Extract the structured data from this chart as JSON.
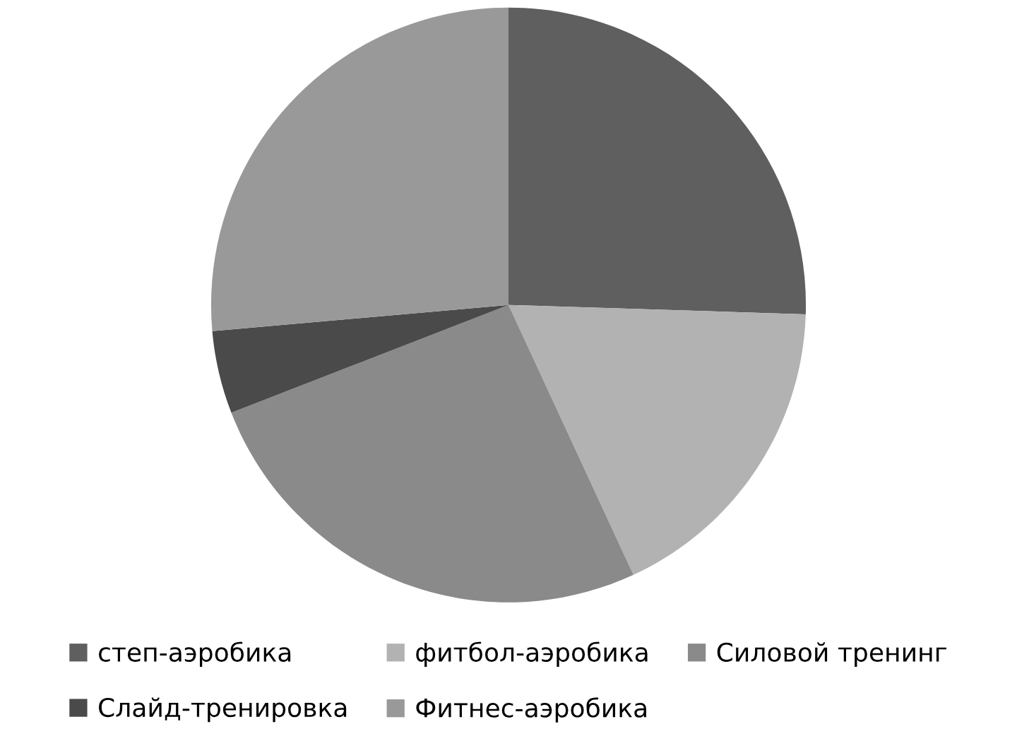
{
  "chart_data": {
    "type": "pie",
    "categories": [
      "степ-аэробика",
      "фитбол-аэробика",
      "Силовой тренинг",
      "Слайд-тренировка",
      "Фитнес-аэробика"
    ],
    "values": [
      25.5,
      17.6,
      26,
      4.5,
      26.4
    ],
    "colors": [
      "#5f5f5f",
      "#b2b2b2",
      "#8a8a8a",
      "#4a4a4a",
      "#999999"
    ],
    "legend": "bottom"
  }
}
